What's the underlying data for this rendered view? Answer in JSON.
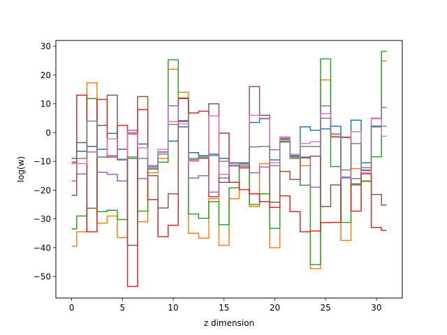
{
  "chart_data": {
    "type": "line",
    "drawstyle": "steps-mid",
    "xlabel": "z dimension",
    "ylabel": "log(w)",
    "xlim": [
      -1.55,
      32.55
    ],
    "ylim": [
      -57.5,
      32.0
    ],
    "xticks": [
      0,
      5,
      10,
      15,
      20,
      25,
      30
    ],
    "yticks": [
      30,
      20,
      10,
      0,
      -10,
      -20,
      -30,
      -40,
      -50
    ],
    "grid": false,
    "legend": "none",
    "x": [
      0,
      1,
      2,
      3,
      4,
      5,
      6,
      7,
      8,
      9,
      10,
      11,
      12,
      13,
      14,
      15,
      16,
      17,
      18,
      19,
      20,
      21,
      22,
      23,
      24,
      25,
      26,
      27,
      28,
      29,
      30,
      31
    ],
    "series": [
      {
        "color": "#1f77b4",
        "values": [
          -9,
          -6.5,
          -4.8,
          -5.8,
          -0.3,
          -9.3,
          -0.5,
          -4,
          -11.5,
          -6.8,
          -3,
          2,
          -7,
          -8,
          -7.5,
          -9,
          -10.5,
          -10.5,
          3.5,
          4.8,
          -9.5,
          -2,
          -8,
          2,
          0.8,
          1.3,
          2.2,
          -15.5,
          4.3,
          -10.5,
          2,
          -1.3
        ]
      },
      {
        "color": "#ff7f0e",
        "values": [
          -39.5,
          -34.5,
          17.3,
          -31.5,
          -29,
          -36.5,
          0,
          -31,
          -14,
          -9,
          22,
          14,
          -35,
          -36.7,
          -23,
          -39.2,
          -23,
          -11.8,
          -25.7,
          -10.8,
          -40,
          -2.5,
          -9,
          -11.5,
          -47.3,
          18.3,
          -1.3,
          -37.5,
          -12.5,
          -17,
          5,
          24.8
        ]
      },
      {
        "color": "#2ca02c",
        "values": [
          -33.5,
          -29,
          11.8,
          -27.5,
          -27,
          -30.2,
          -9,
          -27.3,
          -12.7,
          -10.3,
          25.3,
          11.8,
          -28.3,
          -29.8,
          -24,
          -32,
          -19.2,
          -10.8,
          -25,
          -21.3,
          -33.3,
          -3.3,
          -8.5,
          -18.3,
          -45.9,
          25.6,
          -11.8,
          -31.2,
          -17.8,
          -16.8,
          -8.4,
          28.2
        ]
      },
      {
        "color": "#d62728",
        "values": [
          -10.3,
          13,
          -34.5,
          11.5,
          -8.5,
          2.5,
          -53.5,
          8,
          -23.3,
          -36.2,
          -32.2,
          12,
          6.8,
          7.4,
          -22.3,
          -0.2,
          -17.3,
          -19.8,
          -21.3,
          -24,
          -26,
          -22,
          -27.5,
          -34.5,
          -34.2,
          -31.3,
          -31.2,
          -1.7,
          -27.3,
          -14.3,
          -33,
          -34
        ]
      },
      {
        "color": "#9467bd",
        "values": [
          -16.8,
          -14.4,
          -6.7,
          -13.8,
          -14.5,
          -16.8,
          0.8,
          -16,
          -12,
          -6.7,
          9.3,
          4.2,
          -15.8,
          -15,
          -20.7,
          -15.8,
          -11.4,
          -11.6,
          -14,
          -12,
          -6,
          -2.3,
          -8.3,
          -8.5,
          -19,
          9.3,
          -1.6,
          -15.8,
          -16,
          -12.2,
          5,
          8.7
        ]
      },
      {
        "color": "#8c564b",
        "values": [
          -21.8,
          -3.5,
          -26.3,
          2.5,
          13,
          -5.8,
          -39.2,
          12.5,
          -15,
          -26.2,
          -21.3,
          4,
          -9.5,
          -8.5,
          10,
          -17.3,
          -11.6,
          -12.3,
          16,
          6,
          -24.2,
          -13.5,
          -16.3,
          -8.8,
          -8.2,
          -25.7,
          -18.2,
          -1.6,
          -18.2,
          -13.2,
          -21.5,
          -25.2
        ]
      },
      {
        "color": "#e377c2",
        "values": [
          -10.8,
          -10.8,
          -6.8,
          -8.5,
          -2.2,
          -9.5,
          -0.3,
          -5.3,
          -11.7,
          -5.8,
          3.8,
          3,
          -10,
          -9,
          5.8,
          -14.5,
          -10.8,
          -10.8,
          6,
          5,
          -10.5,
          -1.5,
          -7.5,
          -3.8,
          -3.2,
          6.6,
          -0.5,
          -15.8,
          0.3,
          -14,
          4.8,
          -1.3
        ]
      },
      {
        "color": "#7f7f7f",
        "values": [
          -9,
          -9,
          4,
          -8.5,
          -8,
          -9.5,
          -8.5,
          -9,
          -12.5,
          -7.5,
          2.8,
          3.8,
          -9,
          -9,
          -8,
          -10,
          -11.5,
          -11,
          -5,
          -4.8,
          -11.5,
          -3,
          -9,
          -4.8,
          -4.8,
          5,
          -0.5,
          -13,
          -3.8,
          -13,
          2.3,
          2.2
        ]
      }
    ]
  }
}
